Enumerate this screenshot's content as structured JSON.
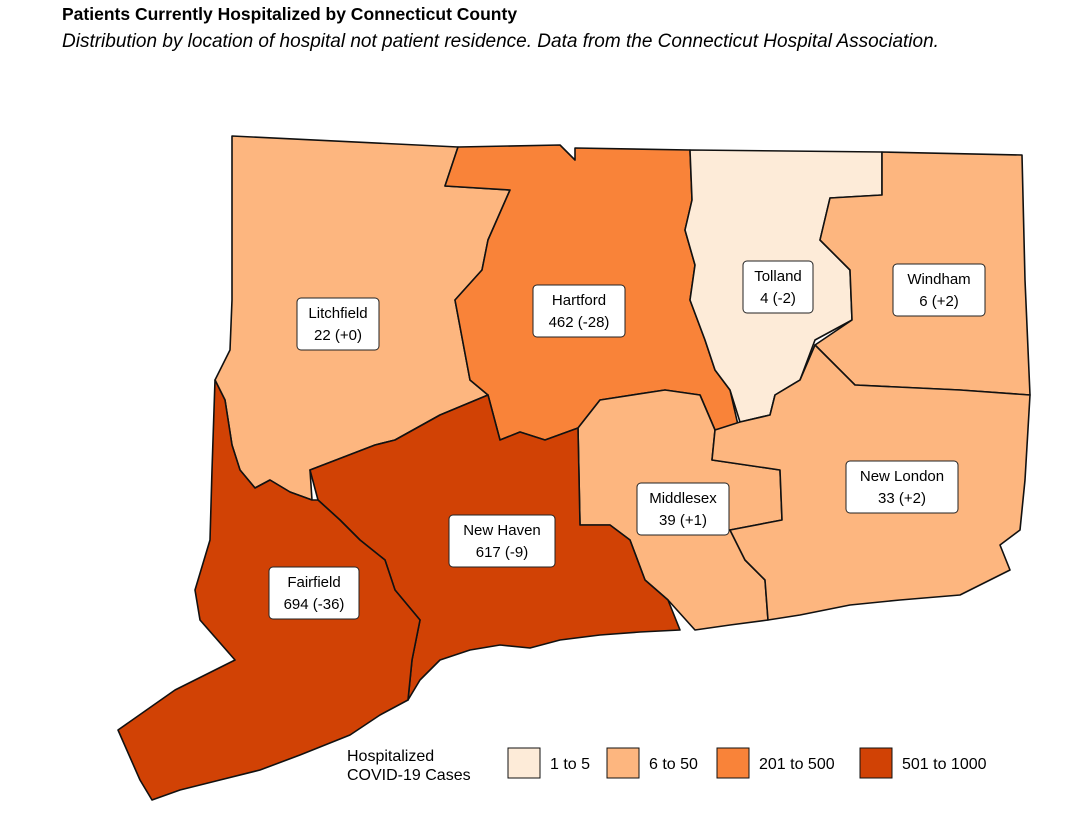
{
  "header": {
    "title": "Patients Currently Hospitalized by Connecticut County",
    "subtitle": "Distribution by location of hospital not patient residence. Data from the Connecticut Hospital Association."
  },
  "colors": {
    "bin_1_5": "#fdebd8",
    "bin_6_50": "#fdb67f",
    "bin_201_500": "#f98339",
    "bin_501_1000": "#d14205",
    "border": "#111111"
  },
  "counties": [
    {
      "name": "Litchfield",
      "value": "22 (+0)",
      "bin": "bin_6_50"
    },
    {
      "name": "Hartford",
      "value": "462 (-28)",
      "bin": "bin_201_500"
    },
    {
      "name": "Tolland",
      "value": "4 (-2)",
      "bin": "bin_1_5"
    },
    {
      "name": "Windham",
      "value": "6 (+2)",
      "bin": "bin_6_50"
    },
    {
      "name": "Middlesex",
      "value": "39 (+1)",
      "bin": "bin_6_50"
    },
    {
      "name": "New London",
      "value": "33 (+2)",
      "bin": "bin_6_50"
    },
    {
      "name": "New Haven",
      "value": "617 (-9)",
      "bin": "bin_501_1000"
    },
    {
      "name": "Fairfield",
      "value": "694 (-36)",
      "bin": "bin_501_1000"
    }
  ],
  "legend": {
    "title_line1": "Hospitalized",
    "title_line2": "COVID-19 Cases",
    "items": [
      {
        "label": "1 to 5",
        "bin": "bin_1_5"
      },
      {
        "label": "6 to 50",
        "bin": "bin_6_50"
      },
      {
        "label": "201 to 500",
        "bin": "bin_201_500"
      },
      {
        "label": "501 to 1000",
        "bin": "bin_501_1000"
      }
    ]
  }
}
